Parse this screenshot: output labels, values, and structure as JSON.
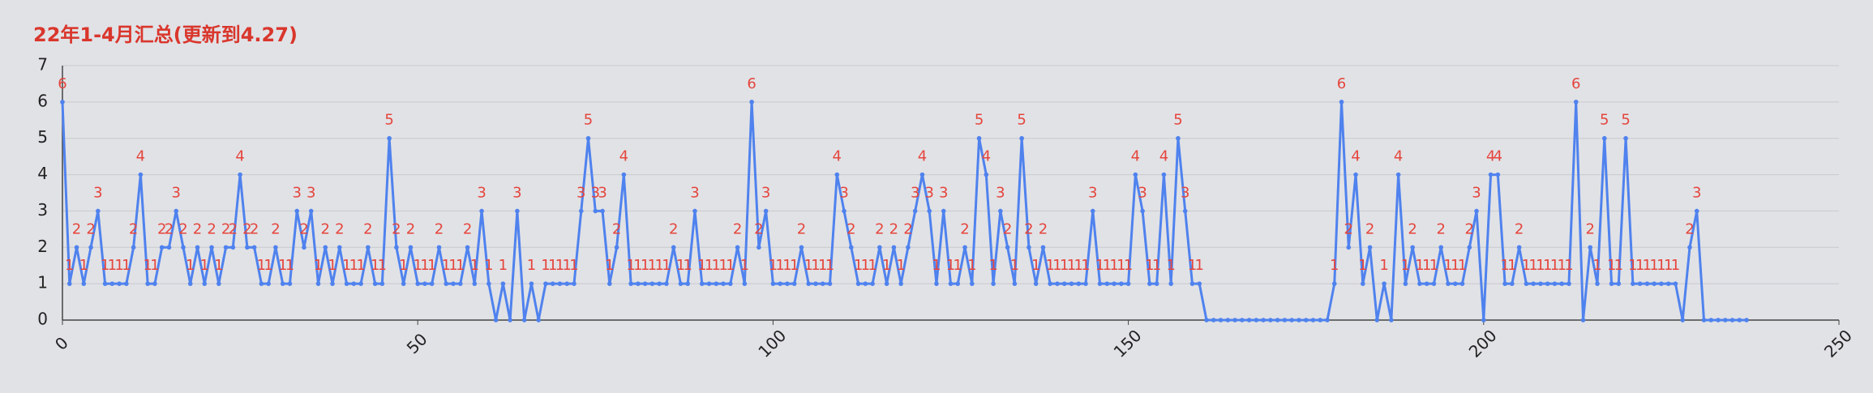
{
  "chart_data": {
    "type": "line",
    "title": "22年1-4月汇总(更新到4.27)",
    "x": [
      0,
      1,
      2,
      3,
      4,
      5,
      6,
      7,
      8,
      9,
      10,
      11,
      12,
      13,
      14,
      15,
      16,
      17,
      18,
      19,
      20,
      21,
      22,
      23,
      24,
      25,
      26,
      27,
      28,
      29,
      30,
      31,
      32,
      33,
      34,
      35,
      36,
      37,
      38,
      39,
      40,
      41,
      42,
      43,
      44,
      45,
      46,
      47,
      48,
      49,
      50,
      51,
      52,
      53,
      54,
      55,
      56,
      57,
      58,
      59,
      60,
      61,
      62,
      63,
      64,
      65,
      66,
      67,
      68,
      69,
      70,
      71,
      72,
      73,
      74,
      75,
      76,
      77,
      78,
      79,
      80,
      81,
      82,
      83,
      84,
      85,
      86,
      87,
      88,
      89,
      90,
      91,
      92,
      93,
      94,
      95,
      96,
      97,
      98,
      99,
      100,
      101,
      102,
      103,
      104,
      105,
      106,
      107,
      108,
      109,
      110,
      111,
      112,
      113,
      114,
      115,
      116,
      117,
      118,
      119,
      120,
      121,
      122,
      123,
      124,
      125,
      126,
      127,
      128,
      129,
      130,
      131,
      132,
      133,
      134,
      135,
      136,
      137,
      138,
      139,
      140,
      141,
      142,
      143,
      144,
      145,
      146,
      147,
      148,
      149,
      150,
      151,
      152,
      153,
      154,
      155,
      156,
      157,
      158,
      159,
      160,
      161,
      162,
      163,
      164,
      165,
      166,
      167,
      168,
      169,
      170,
      171,
      172,
      173,
      174,
      175,
      176,
      177,
      178,
      179,
      180,
      181,
      182,
      183,
      184,
      185,
      186,
      187,
      188,
      189,
      190,
      191,
      192,
      193,
      194,
      195,
      196,
      197,
      198,
      199,
      200,
      201,
      202,
      203,
      204,
      205,
      206,
      207,
      208,
      209,
      210,
      211,
      212,
      213,
      214,
      215,
      216,
      217,
      218,
      219,
      220,
      221,
      222,
      223,
      224,
      225,
      226,
      227,
      228,
      229,
      230,
      231,
      232,
      233,
      234,
      235,
      236,
      237
    ],
    "values": [
      6,
      1,
      2,
      1,
      2,
      3,
      1,
      1,
      1,
      1,
      2,
      4,
      1,
      1,
      2,
      2,
      3,
      2,
      1,
      2,
      1,
      2,
      1,
      2,
      2,
      4,
      2,
      2,
      1,
      1,
      2,
      1,
      1,
      3,
      2,
      3,
      1,
      2,
      1,
      2,
      1,
      1,
      1,
      2,
      1,
      1,
      5,
      2,
      1,
      2,
      1,
      1,
      1,
      2,
      1,
      1,
      1,
      2,
      1,
      3,
      1,
      0,
      1,
      0,
      3,
      0,
      1,
      0,
      1,
      1,
      1,
      1,
      1,
      3,
      5,
      3,
      3,
      1,
      2,
      4,
      1,
      1,
      1,
      1,
      1,
      1,
      2,
      1,
      1,
      3,
      1,
      1,
      1,
      1,
      1,
      2,
      1,
      6,
      2,
      3,
      1,
      1,
      1,
      1,
      2,
      1,
      1,
      1,
      1,
      4,
      3,
      2,
      1,
      1,
      1,
      2,
      1,
      2,
      1,
      2,
      3,
      4,
      3,
      1,
      3,
      1,
      1,
      2,
      1,
      5,
      4,
      1,
      3,
      2,
      1,
      5,
      2,
      1,
      2,
      1,
      1,
      1,
      1,
      1,
      1,
      3,
      1,
      1,
      1,
      1,
      1,
      4,
      3,
      1,
      1,
      4,
      1,
      5,
      3,
      1,
      1,
      0,
      0,
      0,
      0,
      0,
      0,
      0,
      0,
      0,
      0,
      0,
      0,
      0,
      0,
      0,
      0,
      0,
      0,
      1,
      6,
      2,
      4,
      1,
      2,
      0,
      1,
      0,
      4,
      1,
      2,
      1,
      1,
      1,
      2,
      1,
      1,
      1,
      2,
      3,
      0,
      4,
      4,
      1,
      1,
      2,
      1,
      1,
      1,
      1,
      1,
      1,
      1,
      6,
      0,
      2,
      1,
      5,
      1,
      1,
      5,
      1,
      1,
      1,
      1,
      1,
      1,
      1,
      0,
      2,
      3,
      0,
      0,
      0,
      0,
      0,
      0,
      0
    ],
    "color": "#4f82ee",
    "label_color": "#e5453c",
    "xlim": [
      0,
      250
    ],
    "xticks": [
      0,
      50,
      100,
      150,
      200,
      250
    ],
    "ylim": [
      0,
      7
    ],
    "yticks": [
      0,
      1,
      2,
      3,
      4,
      5,
      6,
      7
    ],
    "grid": true
  }
}
